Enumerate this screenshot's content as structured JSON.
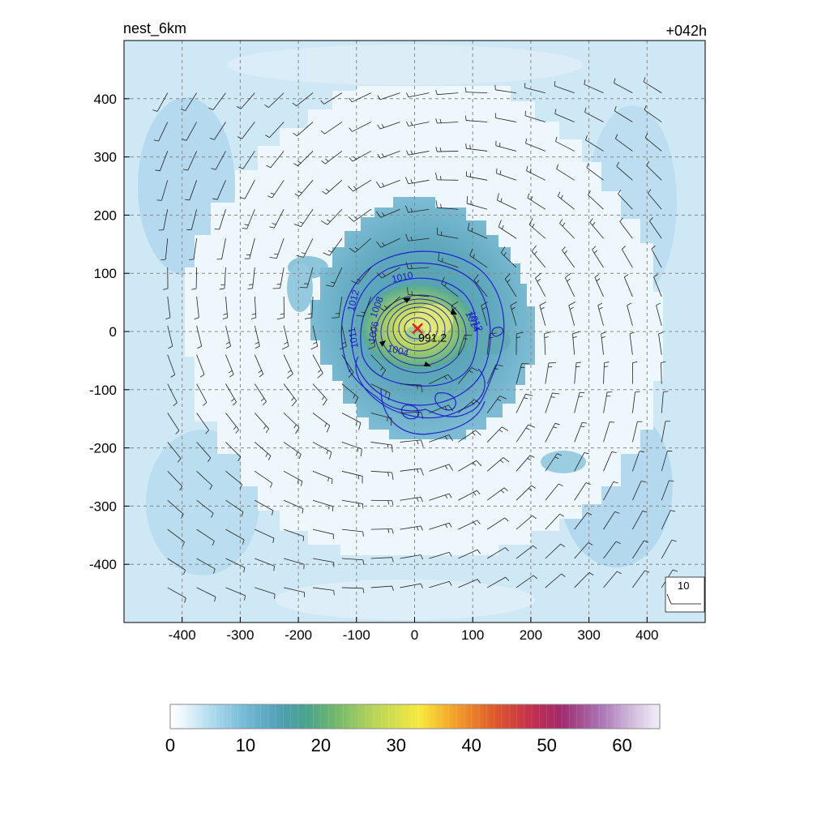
{
  "chart_data": {
    "type": "heatmap",
    "title_left": "nest_6km",
    "title_right": "+042h",
    "xlim": [
      -500,
      500
    ],
    "ylim": [
      -500,
      500
    ],
    "x_ticks": [
      "-400",
      "-300",
      "-200",
      "-100",
      "0",
      "100",
      "200",
      "300",
      "400"
    ],
    "x_tick_values": [
      -400,
      -300,
      -200,
      -100,
      0,
      100,
      200,
      300,
      400
    ],
    "y_ticks": [
      "400",
      "300",
      "200",
      "100",
      "0",
      "-100",
      "-200",
      "-300",
      "-400"
    ],
    "y_tick_values": [
      400,
      300,
      200,
      100,
      0,
      -100,
      -200,
      -300,
      -400
    ],
    "grid": true,
    "grid_style": "dashed",
    "center": {
      "x": 5,
      "y": 5,
      "label": "991.2",
      "marker_color": "#e0201b"
    },
    "contour_labels": [
      {
        "text": "1010",
        "x": -20,
        "y": 88,
        "color": "#1a1ad0",
        "angle": -12
      },
      {
        "text": "1012",
        "x": -100,
        "y": 52,
        "color": "#1a1ad0",
        "angle": -75
      },
      {
        "text": "1008",
        "x": -60,
        "y": 40,
        "color": "#1a1ad0",
        "angle": -70
      },
      {
        "text": "1006",
        "x": -65,
        "y": -2,
        "color": "#1a1ad0",
        "angle": -80
      },
      {
        "text": "1004",
        "x": -30,
        "y": -38,
        "color": "#1a1ad0",
        "angle": 15
      },
      {
        "text": "1012",
        "x": 100,
        "y": 15,
        "color": "#1a1ad0",
        "angle": 65
      },
      {
        "text": "1014",
        "x": 95,
        "y": 15,
        "color": "#1a1ad0",
        "angle": 65
      },
      {
        "text": "1011",
        "x": -100,
        "y": -10,
        "color": "#1a1ad0",
        "angle": -100
      }
    ],
    "wind_reference": {
      "label": "10"
    },
    "colorbar": {
      "min": 0,
      "max": 65,
      "ticks": [
        "0",
        "10",
        "20",
        "30",
        "40",
        "50",
        "60"
      ],
      "tick_values": [
        0,
        10,
        20,
        30,
        40,
        50,
        60
      ],
      "stops": [
        {
          "v": 0,
          "c": "#ffffff"
        },
        {
          "v": 2,
          "c": "#e8f5fc"
        },
        {
          "v": 5,
          "c": "#b6dff1"
        },
        {
          "v": 10,
          "c": "#73b9d6"
        },
        {
          "v": 15,
          "c": "#4e9eb0"
        },
        {
          "v": 18,
          "c": "#4aa28e"
        },
        {
          "v": 22,
          "c": "#72b86c"
        },
        {
          "v": 27,
          "c": "#b8d459"
        },
        {
          "v": 33,
          "c": "#f6ea3e"
        },
        {
          "v": 37,
          "c": "#f5ac2a"
        },
        {
          "v": 43,
          "c": "#de5a2a"
        },
        {
          "v": 48,
          "c": "#c32f4f"
        },
        {
          "v": 52,
          "c": "#a02c6e"
        },
        {
          "v": 57,
          "c": "#a972b3"
        },
        {
          "v": 62,
          "c": "#d7c6e3"
        },
        {
          "v": 65,
          "c": "#f4eef7"
        }
      ]
    }
  }
}
